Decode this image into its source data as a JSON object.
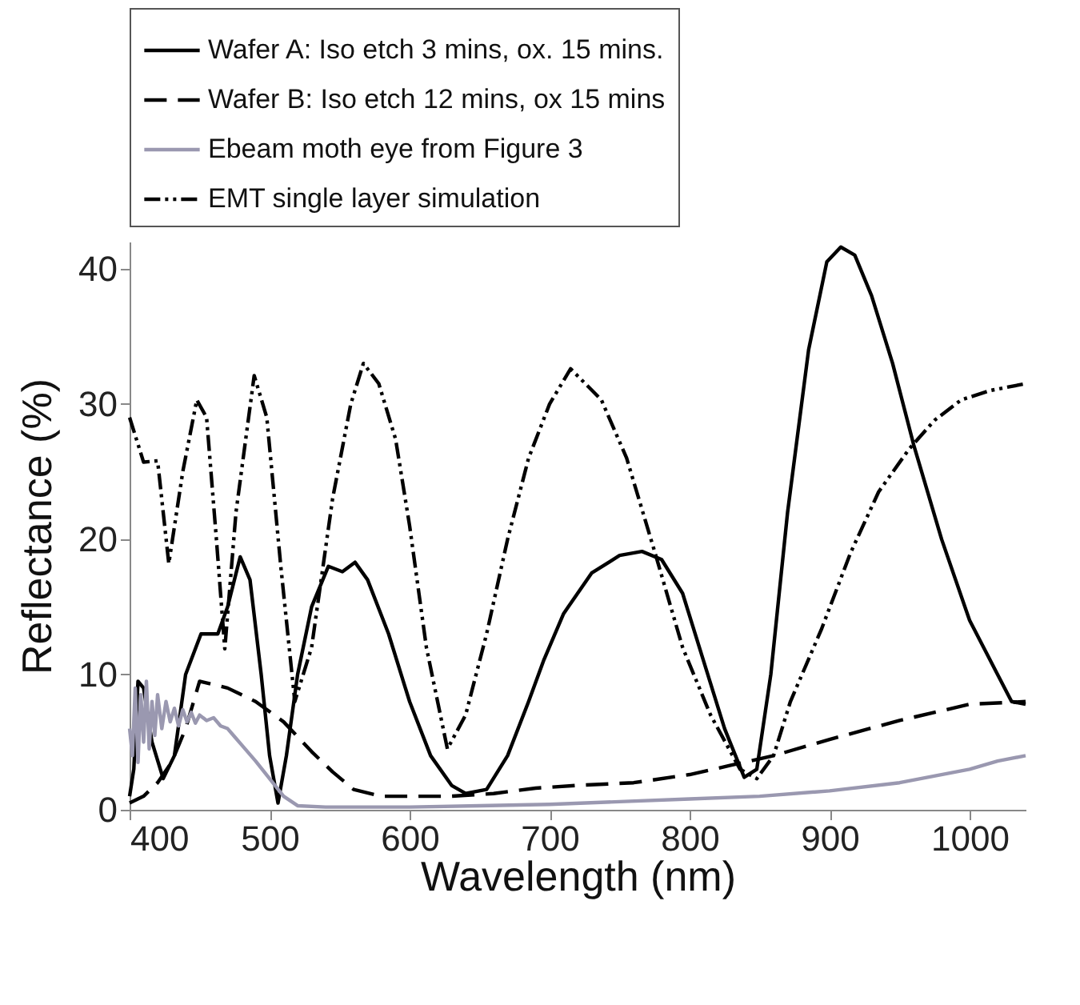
{
  "chart_data": {
    "type": "line",
    "xlabel": "Wavelength (nm)",
    "ylabel": "Reflectance (%)",
    "xlim": [
      400,
      1040
    ],
    "xticks": [
      400,
      500,
      600,
      700,
      800,
      900,
      1000
    ],
    "ylim": [
      0,
      42
    ],
    "yticks": [
      0,
      10,
      20,
      30,
      40
    ],
    "grid": false,
    "legend": "top",
    "marker": "none",
    "series": [
      {
        "name": "Wafer A: Iso etch 3 mins, ox. 15 mins.",
        "color": "#000000",
        "line_style": "solid",
        "x": [
          400,
          403,
          406,
          410,
          416,
          424,
          432,
          440,
          451,
          463,
          470,
          479,
          486,
          494,
          500,
          506,
          512,
          520,
          530,
          542,
          552,
          561,
          570,
          585,
          600,
          615,
          630,
          640,
          655,
          670,
          685,
          696,
          710,
          730,
          750,
          766,
          780,
          795,
          810,
          825,
          839,
          848,
          858,
          870,
          885,
          898,
          908,
          918,
          930,
          945,
          960,
          980,
          1000,
          1020,
          1030,
          1040
        ],
        "values": [
          1,
          3,
          9.5,
          9,
          5,
          2.3,
          4,
          10,
          13,
          13,
          15,
          18.7,
          17,
          10,
          4,
          0.5,
          4,
          10,
          15,
          18,
          17.6,
          18.3,
          17,
          13,
          8,
          4,
          1.8,
          1.2,
          1.5,
          4,
          8,
          11.1,
          14.5,
          17.5,
          18.8,
          19.1,
          18.5,
          16,
          11,
          6,
          2.4,
          3,
          10,
          22,
          34,
          40.5,
          41.6,
          41,
          38,
          33,
          27,
          20,
          14,
          10,
          8,
          7.8
        ]
      },
      {
        "name": "Wafer B: Iso etch 12 mins, ox 15 mins",
        "color": "#000000",
        "line_style": "dashed",
        "x": [
          400,
          410,
          420,
          430,
          440,
          450,
          470,
          490,
          510,
          530,
          545,
          560,
          580,
          600,
          630,
          660,
          690,
          720,
          760,
          800,
          830,
          860,
          900,
          950,
          1000,
          1040
        ],
        "values": [
          0.5,
          1,
          2,
          3.5,
          6,
          9.5,
          9,
          8,
          6.5,
          4.3,
          2.8,
          1.5,
          1,
          1,
          1,
          1.2,
          1.6,
          1.8,
          2,
          2.6,
          3.3,
          4,
          5.2,
          6.6,
          7.8,
          8
        ]
      },
      {
        "name": "Ebeam moth eye from Figure 3",
        "color": "#9a98b0",
        "line_style": "solid",
        "x": [
          400,
          402,
          404,
          406,
          408,
          410,
          412,
          414,
          416,
          418,
          420,
          423,
          426,
          429,
          432,
          435,
          438,
          441,
          444,
          447,
          450,
          455,
          460,
          465,
          470,
          475,
          480,
          490,
          500,
          510,
          520,
          540,
          560,
          600,
          650,
          700,
          750,
          800,
          850,
          900,
          950,
          1000,
          1020,
          1040
        ],
        "values": [
          6,
          4,
          9,
          3.5,
          8.5,
          5,
          9.5,
          4.5,
          8,
          5.5,
          8.5,
          6,
          8,
          6.5,
          7.5,
          6.2,
          7.4,
          6.5,
          7.2,
          6.4,
          7,
          6.6,
          6.8,
          6.2,
          6,
          5.4,
          4.8,
          3.6,
          2.3,
          1,
          0.3,
          0.2,
          0.2,
          0.2,
          0.3,
          0.4,
          0.6,
          0.8,
          1,
          1.4,
          2,
          3,
          3.6,
          4
        ]
      },
      {
        "name": "EMT single layer simulation",
        "color": "#000000",
        "line_style": "dotted",
        "x": [
          400,
          410,
          420,
          428,
          438,
          448,
          455,
          462,
          468,
          476,
          489,
          498,
          508,
          518,
          530,
          545,
          558,
          567,
          578,
          590,
          600,
          612,
          627,
          640,
          655,
          670,
          685,
          700,
          715,
          737,
          755,
          775,
          795,
          815,
          836,
          848,
          860,
          872,
          894,
          915,
          935,
          957,
          975,
          994,
          1015,
          1040
        ],
        "values": [
          29,
          25.7,
          25.8,
          18.2,
          25,
          30.3,
          29,
          20,
          11.9,
          22,
          32.1,
          29,
          18,
          8,
          12,
          23,
          30,
          33,
          31.5,
          27.4,
          21,
          12,
          4.5,
          7,
          13,
          20,
          26,
          30,
          32.6,
          30.3,
          26,
          19.1,
          12,
          7,
          3,
          2.3,
          4,
          8,
          13.3,
          19,
          23.5,
          26.7,
          28.8,
          30.3,
          31,
          31.5
        ]
      }
    ]
  }
}
